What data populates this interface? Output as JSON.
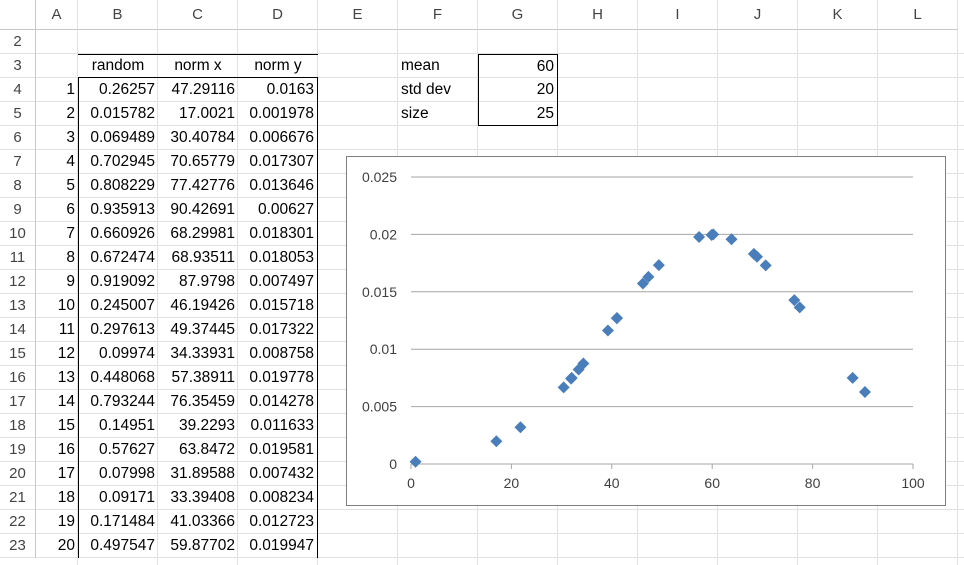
{
  "sheet": {
    "columns": [
      "A",
      "B",
      "C",
      "D",
      "E",
      "F",
      "G",
      "H",
      "I",
      "J",
      "K",
      "L"
    ],
    "rows": [
      "2",
      "3",
      "4",
      "5",
      "6",
      "7",
      "8",
      "9",
      "10",
      "11",
      "12",
      "13",
      "14",
      "15",
      "16",
      "17",
      "18",
      "19",
      "20",
      "21",
      "22",
      "23"
    ],
    "table_headers": [
      "random",
      "norm x",
      "norm y"
    ],
    "table_rows": [
      [
        "1",
        "0.26257",
        "47.29116",
        "0.0163"
      ],
      [
        "2",
        "0.015782",
        "17.0021",
        "0.001978"
      ],
      [
        "3",
        "0.069489",
        "30.40784",
        "0.006676"
      ],
      [
        "4",
        "0.702945",
        "70.65779",
        "0.017307"
      ],
      [
        "5",
        "0.808229",
        "77.42776",
        "0.013646"
      ],
      [
        "6",
        "0.935913",
        "90.42691",
        "0.00627"
      ],
      [
        "7",
        "0.660926",
        "68.29981",
        "0.018301"
      ],
      [
        "8",
        "0.672474",
        "68.93511",
        "0.018053"
      ],
      [
        "9",
        "0.919092",
        "87.9798",
        "0.007497"
      ],
      [
        "10",
        "0.245007",
        "46.19426",
        "0.015718"
      ],
      [
        "11",
        "0.297613",
        "49.37445",
        "0.017322"
      ],
      [
        "12",
        "0.09974",
        "34.33931",
        "0.008758"
      ],
      [
        "13",
        "0.448068",
        "57.38911",
        "0.019778"
      ],
      [
        "14",
        "0.793244",
        "76.35459",
        "0.014278"
      ],
      [
        "15",
        "0.14951",
        "39.2293",
        "0.011633"
      ],
      [
        "16",
        "0.57627",
        "63.8472",
        "0.019581"
      ],
      [
        "17",
        "0.07998",
        "31.89588",
        "0.007432"
      ],
      [
        "18",
        "0.09171",
        "33.39408",
        "0.008234"
      ],
      [
        "19",
        "0.171484",
        "41.03366",
        "0.012723"
      ],
      [
        "20",
        "0.497547",
        "59.87702",
        "0.019947"
      ]
    ],
    "params": [
      {
        "label": "mean",
        "value": "60"
      },
      {
        "label": "std dev",
        "value": "20"
      },
      {
        "label": "size",
        "value": "25"
      }
    ]
  },
  "chart_data": {
    "type": "scatter",
    "title": "",
    "xlabel": "",
    "ylabel": "",
    "xlim": [
      0,
      100
    ],
    "ylim": [
      0,
      0.025
    ],
    "x_ticks": [
      "0",
      "20",
      "40",
      "60",
      "80",
      "100"
    ],
    "y_ticks": [
      "0",
      "0.005",
      "0.01",
      "0.015",
      "0.02",
      "0.025"
    ],
    "grid": "horizontal",
    "marker": "diamond",
    "marker_color": "#4a7ebb",
    "points": [
      [
        47.29116,
        0.0163
      ],
      [
        17.0021,
        0.001978
      ],
      [
        30.40784,
        0.006676
      ],
      [
        70.65779,
        0.017307
      ],
      [
        77.42776,
        0.013646
      ],
      [
        90.42691,
        0.00627
      ],
      [
        68.29981,
        0.018301
      ],
      [
        68.93511,
        0.018053
      ],
      [
        87.9798,
        0.007497
      ],
      [
        46.19426,
        0.015718
      ],
      [
        49.37445,
        0.017322
      ],
      [
        34.33931,
        0.008758
      ],
      [
        57.38911,
        0.019778
      ],
      [
        76.35459,
        0.014278
      ],
      [
        39.2293,
        0.011633
      ],
      [
        63.8472,
        0.019581
      ],
      [
        31.89588,
        0.007432
      ],
      [
        33.39408,
        0.008234
      ],
      [
        41.03366,
        0.012723
      ],
      [
        59.87702,
        0.019947
      ],
      [
        0.9,
        0.0002
      ],
      [
        21.8,
        0.0032
      ],
      [
        32.0,
        0.0075
      ],
      [
        41.0,
        0.0127
      ],
      [
        60.2,
        0.02
      ]
    ]
  }
}
